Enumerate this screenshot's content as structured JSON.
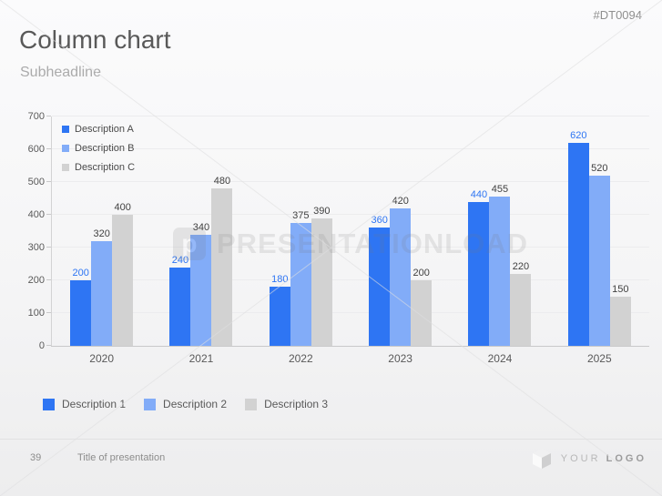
{
  "header": {
    "title": "Column chart",
    "subtitle": "Subheadline",
    "doc_code": "#DT0094"
  },
  "chart_data": {
    "type": "bar",
    "title": "",
    "xlabel": "",
    "ylabel": "",
    "categories": [
      "2020",
      "2021",
      "2022",
      "2023",
      "2024",
      "2025"
    ],
    "series": [
      {
        "name": "Description A",
        "color": "#2e75f3",
        "label_color": "#2e75f3",
        "values": [
          200,
          240,
          180,
          360,
          440,
          620
        ]
      },
      {
        "name": "Description B",
        "color": "#82acf8",
        "label_color": "#404040",
        "values": [
          320,
          340,
          375,
          420,
          455,
          520
        ]
      },
      {
        "name": "Description C",
        "color": "#d2d2d2",
        "label_color": "#404040",
        "values": [
          400,
          480,
          390,
          200,
          220,
          150
        ]
      }
    ],
    "ylim": [
      0,
      700
    ],
    "yticks": [
      0,
      100,
      200,
      300,
      400,
      500,
      600,
      700
    ],
    "grid": true,
    "legend_position": "top-left-inside"
  },
  "bottom_legend": [
    {
      "label": "Description 1",
      "color": "#2e75f3"
    },
    {
      "label": "Description 2",
      "color": "#82acf8"
    },
    {
      "label": "Description 3",
      "color": "#d2d2d2"
    }
  ],
  "watermark": {
    "logo_letter": "p",
    "text": "PRESENTATIONLOAD"
  },
  "footer": {
    "page_number": "39",
    "presentation_title": "Title of presentation",
    "logo_text_light": "YOUR",
    "logo_text_bold": "LOGO"
  }
}
